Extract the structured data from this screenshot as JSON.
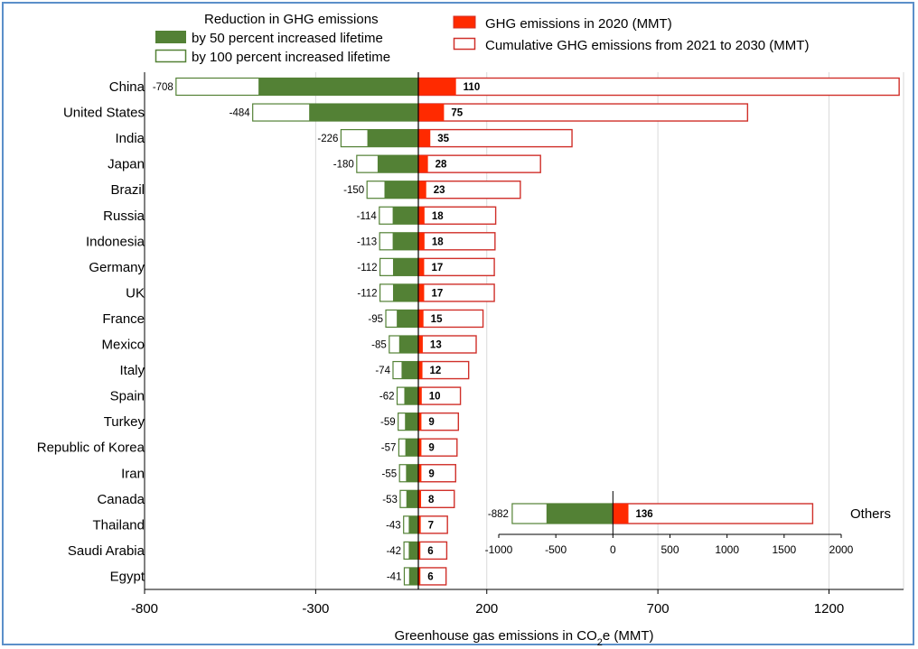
{
  "legend": {
    "reduction_title": "Reduction in GHG emissions",
    "reduction_50": "by 50 percent increased lifetime",
    "reduction_100": "by 100 percent  increased lifetime",
    "ghg_2020": "GHG emissions in 2020 (MMT)",
    "cumulative": "Cumulative  GHG emissions from 2021 to 2030 (MMT)"
  },
  "colors": {
    "green": "#538135",
    "red": "#ff2a00",
    "red_outline": "#d0302a",
    "frame": "#5b8fc9"
  },
  "chart_data": {
    "type": "bar",
    "orientation": "horizontal",
    "xlabel_prefix": "Greenhouse gas emissions in CO",
    "xlabel_sub": "2",
    "xlabel_suffix": "e (MMT)",
    "xlim": [
      -800,
      1450
    ],
    "xticks": [
      -800,
      -300,
      200,
      700,
      1200
    ],
    "grid": true,
    "categories": [
      "China",
      "United States",
      "India",
      "Japan",
      "Brazil",
      "Russia",
      "Indonesia",
      "Germany",
      "UK",
      "France",
      "Mexico",
      "Italy",
      "Spain",
      "Turkey",
      "Republic of Korea",
      "Iran",
      "Canada",
      "Thailand",
      "Saudi Arabia",
      "Egypt"
    ],
    "series": [
      {
        "name": "by 100 percent  increased lifetime",
        "values": [
          -708,
          -484,
          -226,
          -180,
          -150,
          -114,
          -113,
          -112,
          -112,
          -95,
          -85,
          -74,
          -62,
          -59,
          -57,
          -55,
          -53,
          -43,
          -42,
          -41
        ]
      },
      {
        "name": "by 50 percent increased lifetime",
        "values": [
          -467,
          -319,
          -149,
          -119,
          -99,
          -75,
          -75,
          -74,
          -74,
          -63,
          -56,
          -49,
          -41,
          -39,
          -38,
          -36,
          -35,
          -28,
          -28,
          -27
        ]
      },
      {
        "name": "GHG emissions in 2020 (MMT)",
        "values": [
          110,
          75,
          35,
          28,
          23,
          18,
          18,
          17,
          17,
          15,
          13,
          12,
          10,
          9,
          9,
          9,
          8,
          7,
          6,
          6
        ]
      },
      {
        "name": "Cumulative  GHG emissions from 2021 to 2030 (MMT)",
        "values": [
          1405,
          962,
          449,
          357,
          298,
          226,
          224,
          222,
          222,
          189,
          169,
          147,
          123,
          117,
          113,
          109,
          105,
          85,
          83,
          81
        ]
      }
    ],
    "inset": {
      "label": "Others",
      "xlim": [
        -1000,
        2000
      ],
      "xticks": [
        -1000,
        -500,
        0,
        500,
        1000,
        1500,
        2000
      ],
      "reduction_100": -882,
      "reduction_50": -582,
      "ghg_2020": 136,
      "cumulative": 1750
    }
  }
}
